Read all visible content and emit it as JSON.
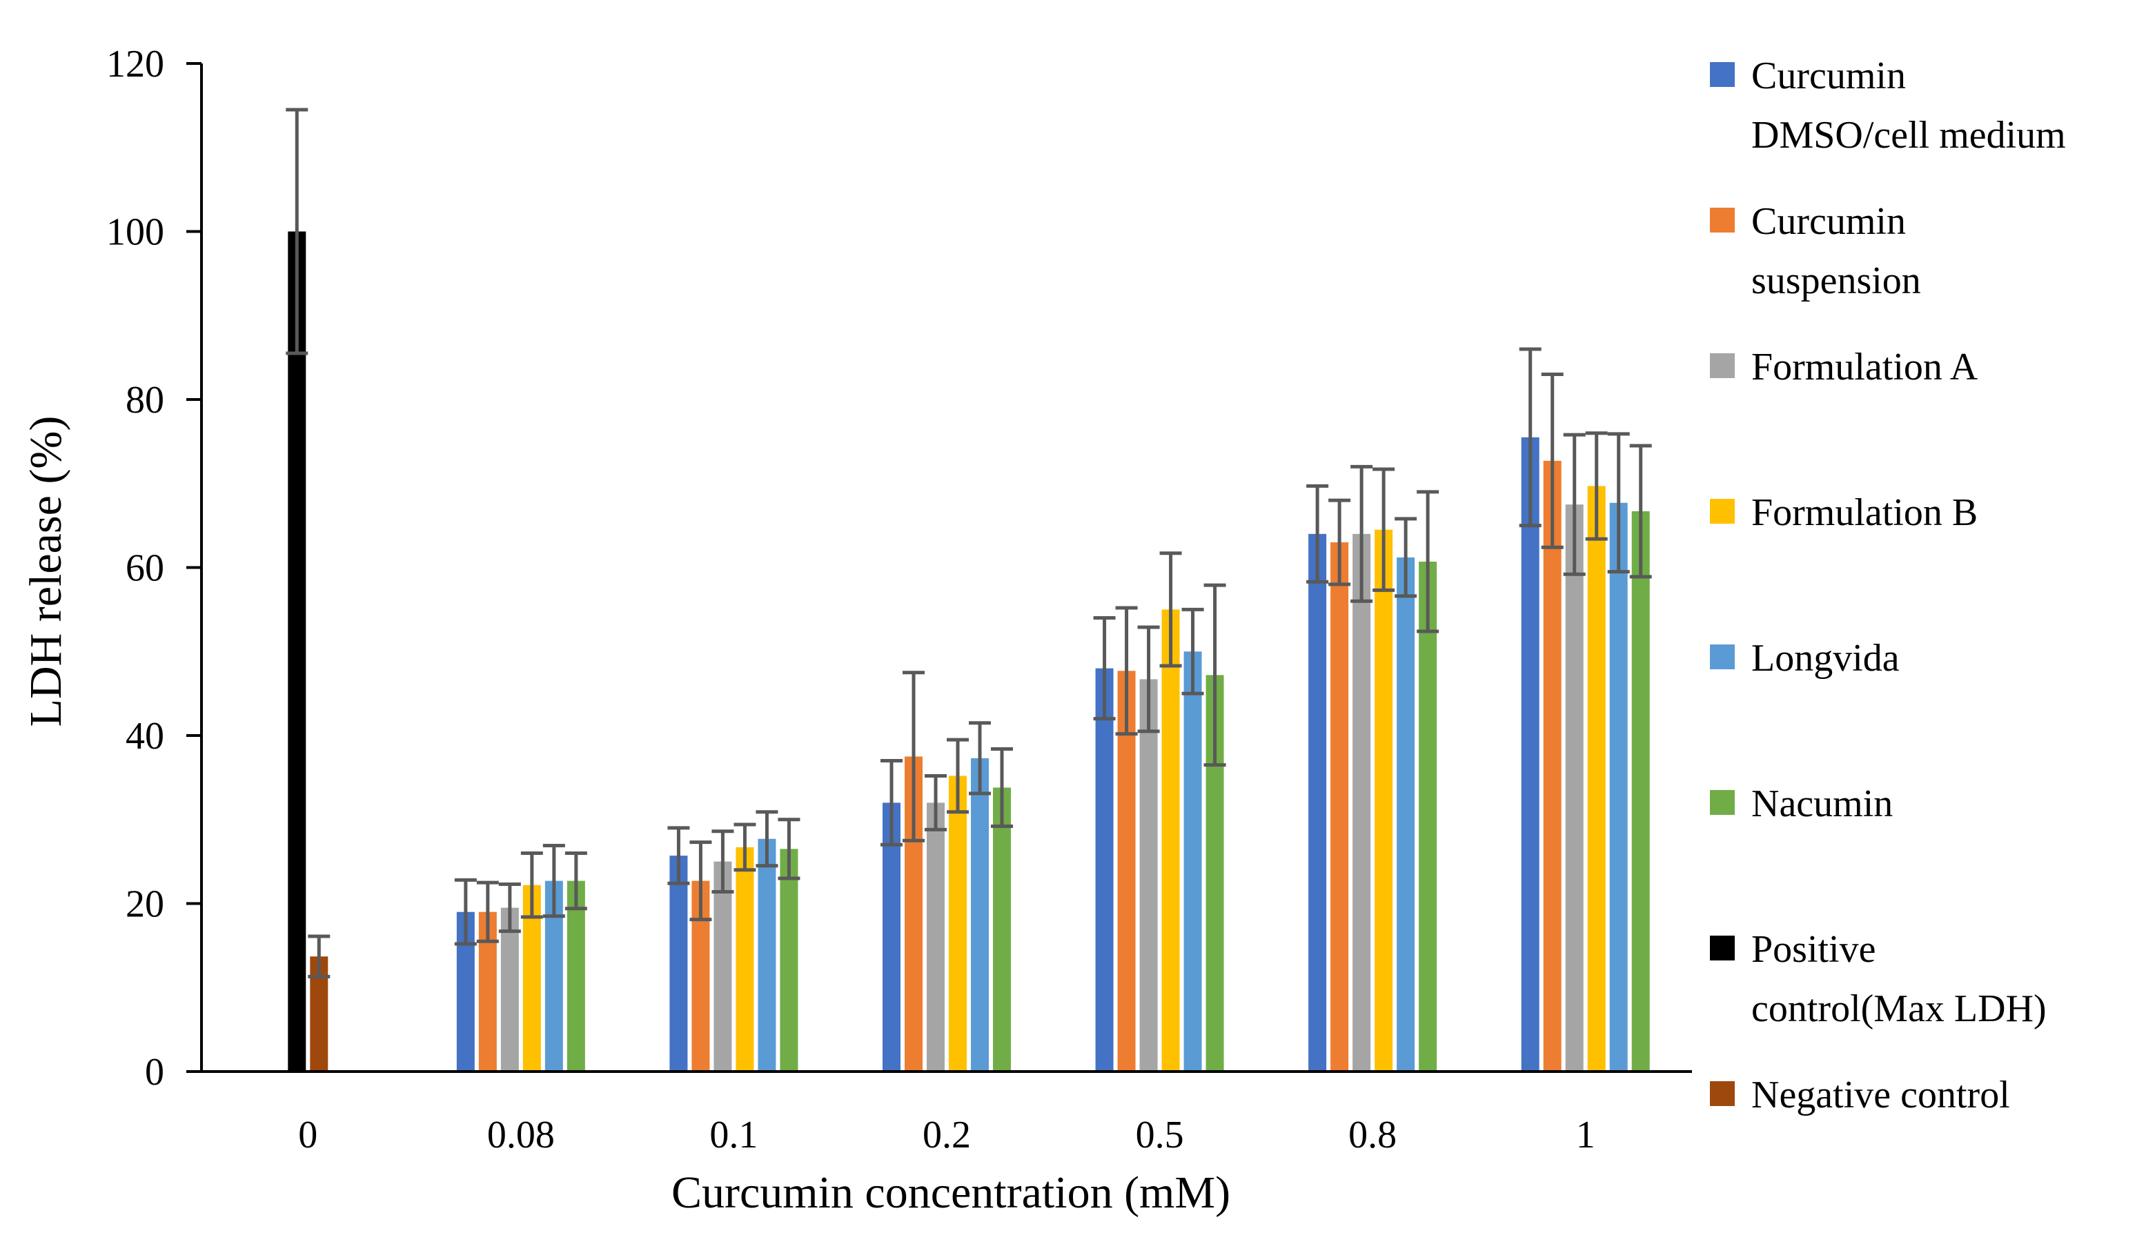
{
  "chart_data": {
    "type": "bar",
    "title": "",
    "xlabel": "Curcumin concentration (mM)",
    "ylabel": "LDH release (%)",
    "ylim": [
      0,
      120
    ],
    "yticks": [
      0,
      20,
      40,
      60,
      80,
      100,
      120
    ],
    "ytick_labels": [
      "0",
      "20",
      "40",
      "60",
      "80",
      "100",
      "120"
    ],
    "categories": [
      "0",
      "0.08",
      "0.1",
      "0.2",
      "0.5",
      "0.8",
      "1"
    ],
    "grid": false,
    "legend_position": "right",
    "error_bars": true,
    "series": [
      {
        "name": "Curcumin DMSO/cell medium",
        "legend_lines": [
          "Curcumin",
          "DMSO/cell medium"
        ],
        "color": "#4472c4",
        "values": [
          null,
          19,
          25.7,
          32,
          48,
          64,
          75.5
        ],
        "errors": [
          null,
          3.8,
          3.3,
          5,
          6,
          5.7,
          10.5
        ]
      },
      {
        "name": "Curcumin suspension",
        "legend_lines": [
          "Curcumin",
          "suspension"
        ],
        "color": "#ed7d31",
        "values": [
          null,
          19,
          22.7,
          37.5,
          47.7,
          63,
          72.7
        ],
        "errors": [
          null,
          3.5,
          4.6,
          10,
          7.5,
          5,
          10.3
        ]
      },
      {
        "name": "Formulation A",
        "legend_lines": [
          "Formulation A"
        ],
        "color": "#a5a5a5",
        "values": [
          null,
          19.5,
          25,
          32,
          46.7,
          64,
          67.5
        ],
        "errors": [
          null,
          2.8,
          3.6,
          3.2,
          6.2,
          8,
          8.3
        ]
      },
      {
        "name": "Formulation B",
        "legend_lines": [
          "Formulation B"
        ],
        "color": "#ffc000",
        "values": [
          null,
          22.2,
          26.7,
          35.2,
          55,
          64.5,
          69.7
        ],
        "errors": [
          null,
          3.8,
          2.7,
          4.3,
          6.7,
          7.2,
          6.3
        ]
      },
      {
        "name": "Longvida",
        "legend_lines": [
          "Longvida"
        ],
        "color": "#5b9bd5",
        "values": [
          null,
          22.7,
          27.7,
          37.3,
          50,
          61.2,
          67.7
        ],
        "errors": [
          null,
          4.2,
          3.2,
          4.2,
          5,
          4.6,
          8.2
        ]
      },
      {
        "name": "Nacumin",
        "legend_lines": [
          "Nacumin"
        ],
        "color": "#70ad47",
        "values": [
          null,
          22.7,
          26.5,
          33.8,
          47.2,
          60.7,
          66.7
        ],
        "errors": [
          null,
          3.3,
          3.5,
          4.6,
          10.7,
          8.3,
          7.8
        ]
      },
      {
        "name": "Positive control(Max LDH)",
        "legend_lines": [
          "Positive",
          "control(Max LDH)"
        ],
        "color": "#000000",
        "values": [
          100,
          null,
          null,
          null,
          null,
          null,
          null
        ],
        "errors": [
          14.5,
          null,
          null,
          null,
          null,
          null,
          null
        ]
      },
      {
        "name": "Negative control",
        "legend_lines": [
          "Negative control"
        ],
        "color": "#9e480e",
        "values": [
          13.7,
          null,
          null,
          null,
          null,
          null,
          null
        ],
        "errors": [
          2.4,
          null,
          null,
          null,
          null,
          null,
          null
        ]
      }
    ]
  }
}
